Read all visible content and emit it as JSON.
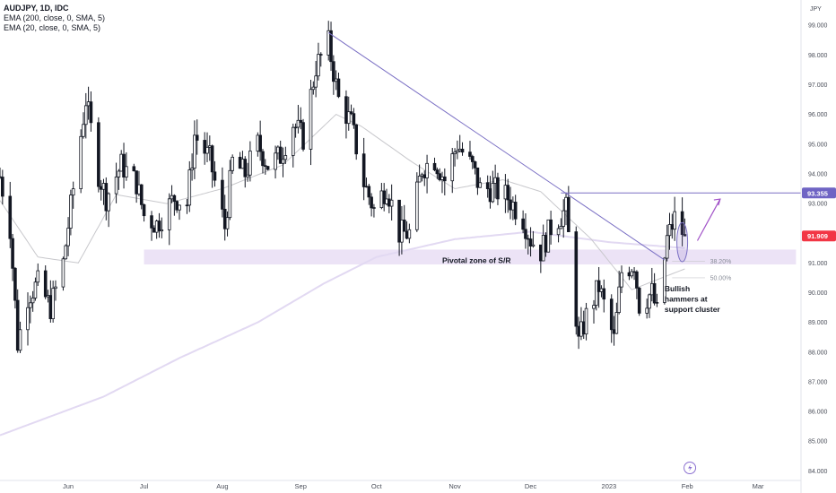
{
  "legend": {
    "symbol": "AUDJPY, 1D, IDC",
    "ema200": "EMA (200, close, 0, SMA, 5)",
    "ema20": "EMA (20, close, 0, SMA, 5)"
  },
  "colors": {
    "up": "#131722",
    "down": "#131722",
    "ema200": "#e2d9f2",
    "ema20": "#c8c8cc",
    "trendline": "#7a6fc4",
    "zone": "#ece3f6",
    "badge_last": "#f23645",
    "badge_level": "#6f64c4",
    "arrow": "#a152c8"
  },
  "chart_data": {
    "type": "candlestick",
    "currency_label": "JPY",
    "y_ticks": [
      "84.000",
      "85.000",
      "86.000",
      "87.000",
      "88.000",
      "89.000",
      "90.000",
      "91.000",
      "92.000",
      "93.000",
      "94.000",
      "95.000",
      "96.000",
      "97.000",
      "98.000",
      "99.000"
    ],
    "ylim": [
      83.8,
      99.85
    ],
    "x_ticks": [
      {
        "label": "Jun",
        "date": "2022-06-01"
      },
      {
        "label": "Jul",
        "date": "2022-07-01"
      },
      {
        "label": "Aug",
        "date": "2022-08-01"
      },
      {
        "label": "Sep",
        "date": "2022-09-01"
      },
      {
        "label": "Oct",
        "date": "2022-10-01"
      },
      {
        "label": "Nov",
        "date": "2022-11-01"
      },
      {
        "label": "Dec",
        "date": "2022-12-01"
      },
      {
        "label": "2023",
        "date": "2023-01-01"
      },
      {
        "label": "Feb",
        "date": "2023-02-01"
      },
      {
        "label": "Mar",
        "date": "2023-03-01"
      }
    ],
    "xlim": [
      "2022-05-05",
      "2023-03-18"
    ],
    "last_price": "91.909",
    "key_level": "93.355",
    "ohlc_anchors": [
      {
        "date": "2022-05-05",
        "close": 93.9
      },
      {
        "date": "2022-05-09",
        "close": 92.2
      },
      {
        "date": "2022-05-12",
        "close": 88.3
      },
      {
        "date": "2022-05-16",
        "close": 89.9
      },
      {
        "date": "2022-05-20",
        "close": 90.3
      },
      {
        "date": "2022-05-25",
        "close": 89.5
      },
      {
        "date": "2022-05-30",
        "close": 91.0
      },
      {
        "date": "2022-06-03",
        "close": 93.5
      },
      {
        "date": "2022-06-08",
        "close": 96.5
      },
      {
        "date": "2022-06-13",
        "close": 94.0
      },
      {
        "date": "2022-06-16",
        "close": 93.2
      },
      {
        "date": "2022-06-22",
        "close": 94.3
      },
      {
        "date": "2022-06-28",
        "close": 93.7
      },
      {
        "date": "2022-07-01",
        "close": 92.6
      },
      {
        "date": "2022-07-06",
        "close": 92.3
      },
      {
        "date": "2022-07-13",
        "close": 93.2
      },
      {
        "date": "2022-07-18",
        "close": 93.0
      },
      {
        "date": "2022-07-21",
        "close": 95.3
      },
      {
        "date": "2022-07-27",
        "close": 94.5
      },
      {
        "date": "2022-08-02",
        "close": 92.2
      },
      {
        "date": "2022-08-05",
        "close": 94.4
      },
      {
        "date": "2022-08-10",
        "close": 94.0
      },
      {
        "date": "2022-08-15",
        "close": 95.0
      },
      {
        "date": "2022-08-19",
        "close": 94.3
      },
      {
        "date": "2022-08-24",
        "close": 94.6
      },
      {
        "date": "2022-08-29",
        "close": 95.7
      },
      {
        "date": "2022-09-02",
        "close": 95.2
      },
      {
        "date": "2022-09-07",
        "close": 97.6
      },
      {
        "date": "2022-09-12",
        "close": 98.4
      },
      {
        "date": "2022-09-16",
        "close": 96.5
      },
      {
        "date": "2022-09-21",
        "close": 95.7
      },
      {
        "date": "2022-09-26",
        "close": 93.7
      },
      {
        "date": "2022-09-30",
        "close": 92.8
      },
      {
        "date": "2022-10-05",
        "close": 93.6
      },
      {
        "date": "2022-10-10",
        "close": 92.0
      },
      {
        "date": "2022-10-14",
        "close": 92.0
      },
      {
        "date": "2022-10-19",
        "close": 94.2
      },
      {
        "date": "2022-10-24",
        "close": 94.5
      },
      {
        "date": "2022-10-28",
        "close": 93.8
      },
      {
        "date": "2022-11-02",
        "close": 95.0
      },
      {
        "date": "2022-11-08",
        "close": 94.2
      },
      {
        "date": "2022-11-11",
        "close": 93.5
      },
      {
        "date": "2022-11-16",
        "close": 93.5
      },
      {
        "date": "2022-11-22",
        "close": 93.2
      },
      {
        "date": "2022-11-28",
        "close": 92.5
      },
      {
        "date": "2022-12-01",
        "close": 91.8
      },
      {
        "date": "2022-12-05",
        "close": 91.4
      },
      {
        "date": "2022-12-09",
        "close": 92.2
      },
      {
        "date": "2022-12-15",
        "close": 92.8
      },
      {
        "date": "2022-12-20",
        "close": 88.3
      },
      {
        "date": "2022-12-23",
        "close": 89.2
      },
      {
        "date": "2022-12-28",
        "close": 90.2
      },
      {
        "date": "2023-01-03",
        "close": 88.4
      },
      {
        "date": "2023-01-06",
        "close": 90.7
      },
      {
        "date": "2023-01-11",
        "close": 91.0
      },
      {
        "date": "2023-01-13",
        "close": 89.6
      },
      {
        "date": "2023-01-18",
        "close": 90.0
      },
      {
        "date": "2023-01-20",
        "close": 89.3
      },
      {
        "date": "2023-01-24",
        "close": 91.8
      },
      {
        "date": "2023-01-27",
        "close": 92.5
      },
      {
        "date": "2023-01-31",
        "close": 91.9
      }
    ],
    "ema200_anchors": [
      {
        "date": "2022-05-05",
        "value": 85.2
      },
      {
        "date": "2022-06-15",
        "value": 86.5
      },
      {
        "date": "2022-07-15",
        "value": 87.8
      },
      {
        "date": "2022-08-15",
        "value": 89.0
      },
      {
        "date": "2022-09-10",
        "value": 90.3
      },
      {
        "date": "2022-10-01",
        "value": 91.2
      },
      {
        "date": "2022-11-01",
        "value": 91.8
      },
      {
        "date": "2022-12-01",
        "value": 92.05
      },
      {
        "date": "2023-01-01",
        "value": 91.7
      },
      {
        "date": "2023-01-31",
        "value": 91.5
      }
    ],
    "ema20_anchors": [
      {
        "date": "2022-05-05",
        "value": 93.1
      },
      {
        "date": "2022-05-20",
        "value": 91.2
      },
      {
        "date": "2022-06-05",
        "value": 91.0
      },
      {
        "date": "2022-06-20",
        "value": 93.3
      },
      {
        "date": "2022-07-10",
        "value": 93.0
      },
      {
        "date": "2022-08-01",
        "value": 93.5
      },
      {
        "date": "2022-08-25",
        "value": 94.3
      },
      {
        "date": "2022-09-15",
        "value": 96.0
      },
      {
        "date": "2022-09-25",
        "value": 95.6
      },
      {
        "date": "2022-10-15",
        "value": 94.4
      },
      {
        "date": "2022-11-01",
        "value": 93.5
      },
      {
        "date": "2022-11-20",
        "value": 93.8
      },
      {
        "date": "2022-12-05",
        "value": 93.4
      },
      {
        "date": "2022-12-25",
        "value": 91.8
      },
      {
        "date": "2023-01-10",
        "value": 90.1
      },
      {
        "date": "2023-01-31",
        "value": 90.8
      }
    ],
    "trendline": [
      {
        "date": "2022-09-12",
        "value": 98.75
      },
      {
        "date": "2023-01-23",
        "value": 91.1
      }
    ],
    "resistance_line": {
      "from": "2022-12-13",
      "to": "2023-03-18",
      "value": 93.355
    },
    "pivot_zone": {
      "from": "2022-07-01",
      "to": "2023-03-16",
      "low": 90.95,
      "high": 91.45
    },
    "fib_levels": [
      {
        "label": "38.20%",
        "value": 91.05
      },
      {
        "label": "50.00%",
        "value": 90.5
      }
    ],
    "hammer_highlight": {
      "date": "2023-01-30",
      "low": 91.1,
      "high": 92.3
    },
    "projection_arrow": [
      {
        "date": "2023-02-05",
        "value": 91.75
      },
      {
        "date": "2023-02-14",
        "value": 93.15
      }
    ],
    "annotations": [
      {
        "text": "Pivotal zone of S/R",
        "date": "2022-10-27",
        "value": 91.0
      },
      {
        "text": "Bullish",
        "date": "2023-01-23",
        "value": 90.05
      },
      {
        "text": "hammers at",
        "date": "2023-01-23",
        "value": 89.7
      },
      {
        "text": "support cluster",
        "date": "2023-01-23",
        "value": 89.35
      }
    ]
  }
}
